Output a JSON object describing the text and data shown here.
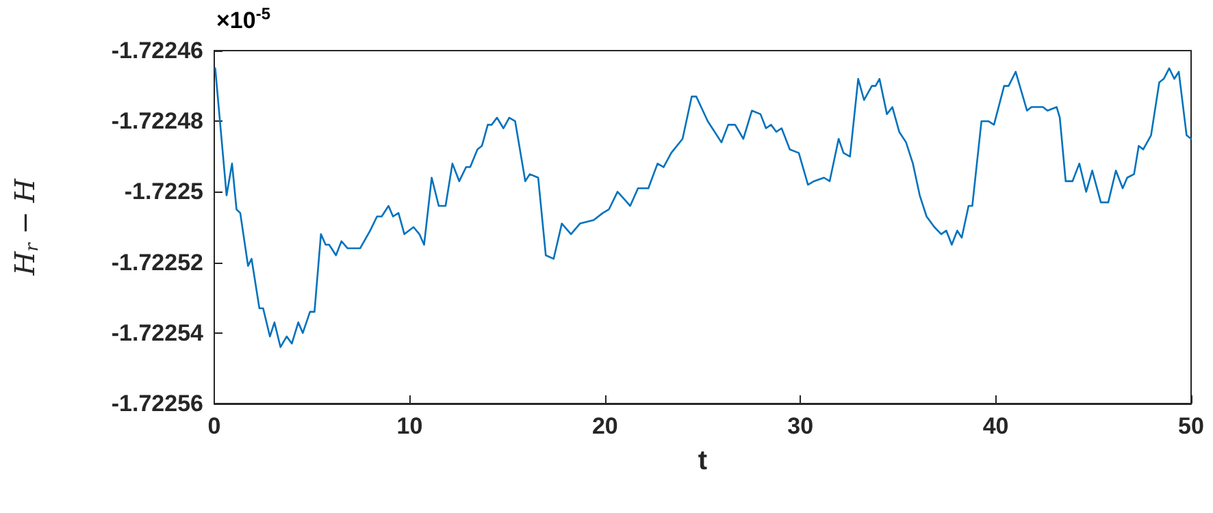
{
  "chart_data": {
    "type": "line",
    "xlabel": "t",
    "ylabel": "H$_{r}$ − H",
    "annotations": [
      "×10$^{-5}$"
    ],
    "xlim": [
      0,
      50
    ],
    "xticks": [
      0,
      10,
      20,
      30,
      40,
      50
    ],
    "ylim": [
      -1.72256,
      -1.72246
    ],
    "yticks": [
      -1.72256,
      -1.72254,
      -1.72252,
      -1.7225,
      -1.72248,
      -1.72246
    ],
    "grid": false,
    "marker": "none",
    "line_style": "solid",
    "series": [
      {
        "color": "#0072bd",
        "x": [
          0.05,
          0.63,
          0.91,
          1.14,
          1.33,
          1.73,
          1.91,
          2.31,
          2.5,
          2.85,
          3.08,
          3.39,
          3.71,
          3.97,
          4.3,
          4.53,
          4.9,
          5.13,
          5.46,
          5.7,
          5.88,
          6.23,
          6.51,
          6.82,
          7.47,
          7.98,
          8.33,
          8.57,
          8.92,
          9.15,
          9.43,
          9.73,
          10.2,
          10.5,
          10.74,
          11.13,
          11.49,
          11.84,
          12.19,
          12.54,
          12.89,
          13.1,
          13.47,
          13.7,
          14.0,
          14.2,
          14.47,
          14.8,
          15.1,
          15.4,
          15.92,
          16.15,
          16.58,
          16.97,
          17.37,
          17.79,
          18.26,
          18.72,
          19.42,
          19.89,
          20.2,
          20.64,
          20.97,
          21.29,
          21.69,
          22.22,
          22.69,
          23.0,
          23.39,
          23.97,
          24.44,
          24.67,
          25.26,
          25.96,
          26.31,
          26.66,
          27.08,
          27.52,
          27.96,
          28.24,
          28.5,
          28.77,
          29.04,
          29.46,
          29.92,
          30.39,
          30.7,
          31.21,
          31.5,
          31.96,
          32.21,
          32.54,
          32.96,
          33.26,
          33.66,
          33.85,
          34.05,
          34.43,
          34.71,
          35.06,
          35.41,
          35.76,
          36.11,
          36.46,
          36.86,
          37.21,
          37.47,
          37.75,
          38.03,
          38.26,
          38.61,
          38.8,
          39.27,
          39.62,
          39.91,
          40.43,
          40.66,
          41.02,
          41.6,
          41.83,
          42.42,
          42.65,
          43.12,
          43.28,
          43.58,
          43.93,
          44.28,
          44.63,
          44.94,
          45.38,
          45.76,
          46.15,
          46.5,
          46.73,
          47.08,
          47.32,
          47.55,
          47.95,
          48.37,
          48.6,
          48.88,
          49.14,
          49.37,
          49.77,
          50
        ],
        "values": [
          -1.722465,
          -1.722501,
          -1.722492,
          -1.722505,
          -1.722506,
          -1.722521,
          -1.722519,
          -1.722533,
          -1.722533,
          -1.722541,
          -1.722537,
          -1.722544,
          -1.722541,
          -1.722543,
          -1.722537,
          -1.72254,
          -1.722534,
          -1.722534,
          -1.722512,
          -1.722515,
          -1.722515,
          -1.722518,
          -1.722514,
          -1.722516,
          -1.722516,
          -1.722511,
          -1.722507,
          -1.722507,
          -1.722504,
          -1.722507,
          -1.722506,
          -1.722512,
          -1.72251,
          -1.722512,
          -1.722515,
          -1.722496,
          -1.722504,
          -1.722504,
          -1.722492,
          -1.722497,
          -1.722493,
          -1.722493,
          -1.722488,
          -1.722487,
          -1.722481,
          -1.722481,
          -1.722479,
          -1.722482,
          -1.722479,
          -1.72248,
          -1.722497,
          -1.722495,
          -1.722496,
          -1.722518,
          -1.722519,
          -1.722509,
          -1.722512,
          -1.722509,
          -1.722508,
          -1.722506,
          -1.722505,
          -1.7225,
          -1.722502,
          -1.722504,
          -1.722499,
          -1.722499,
          -1.722492,
          -1.722493,
          -1.722489,
          -1.722485,
          -1.722473,
          -1.722473,
          -1.72248,
          -1.722486,
          -1.722481,
          -1.722481,
          -1.722485,
          -1.722477,
          -1.722478,
          -1.722482,
          -1.722481,
          -1.722483,
          -1.722482,
          -1.722488,
          -1.722489,
          -1.722498,
          -1.722497,
          -1.722496,
          -1.722497,
          -1.722485,
          -1.722489,
          -1.72249,
          -1.722468,
          -1.722474,
          -1.72247,
          -1.72247,
          -1.722468,
          -1.722478,
          -1.722476,
          -1.722483,
          -1.722486,
          -1.722492,
          -1.722501,
          -1.722507,
          -1.72251,
          -1.722512,
          -1.722511,
          -1.722515,
          -1.722511,
          -1.722513,
          -1.722504,
          -1.722504,
          -1.72248,
          -1.72248,
          -1.722481,
          -1.72247,
          -1.72247,
          -1.722466,
          -1.722477,
          -1.722476,
          -1.722476,
          -1.722477,
          -1.722476,
          -1.722479,
          -1.722497,
          -1.722497,
          -1.722492,
          -1.7225,
          -1.722494,
          -1.722503,
          -1.722503,
          -1.722494,
          -1.722499,
          -1.722496,
          -1.722495,
          -1.722487,
          -1.722488,
          -1.722484,
          -1.722469,
          -1.722468,
          -1.722465,
          -1.722468,
          -1.722466,
          -1.722484,
          -1.722485
        ]
      }
    ]
  }
}
